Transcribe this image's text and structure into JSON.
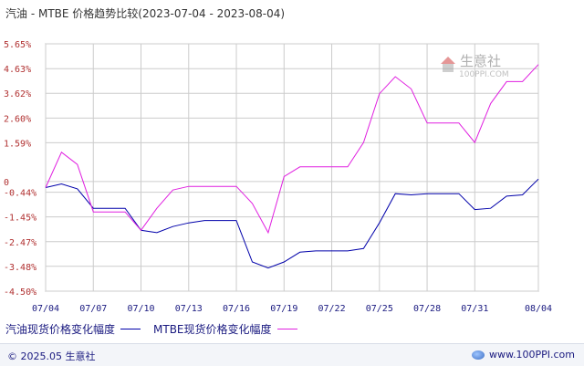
{
  "title": "汽油 - MTBE 价格趋势比较(2023-07-04 - 2023-08-04)",
  "watermark": {
    "logo_text": "生意社",
    "url_text": "100PPI.COM"
  },
  "footer": {
    "copyright": "© 2025.05 生意社",
    "url": "www.100PPI.com"
  },
  "colors": {
    "series1": "#0000aa",
    "series2": "#e020e0",
    "grid": "#cccccc",
    "frame": "#999999"
  },
  "chart_data": {
    "type": "line",
    "ylabel": "",
    "xlabel": "",
    "ylim": [
      -4.5,
      5.65
    ],
    "y_ticks": [
      {
        "value": 5.65,
        "label": "5.65%"
      },
      {
        "value": 4.63,
        "label": "4.63%"
      },
      {
        "value": 3.62,
        "label": "3.62%"
      },
      {
        "value": 2.6,
        "label": "2.60%"
      },
      {
        "value": 1.59,
        "label": "1.59%"
      },
      {
        "value": 0,
        "label": "0"
      },
      {
        "value": -0.44,
        "label": "-0.44%"
      },
      {
        "value": -1.45,
        "label": "-1.45%"
      },
      {
        "value": -2.47,
        "label": "-2.47%"
      },
      {
        "value": -3.48,
        "label": "-3.48%"
      },
      {
        "value": -4.5,
        "label": "-4.50%"
      }
    ],
    "x_dates": [
      "07/04",
      "07/05",
      "07/06",
      "07/07",
      "07/08",
      "07/09",
      "07/10",
      "07/11",
      "07/12",
      "07/13",
      "07/14",
      "07/15",
      "07/16",
      "07/17",
      "07/18",
      "07/19",
      "07/20",
      "07/21",
      "07/22",
      "07/23",
      "07/24",
      "07/25",
      "07/26",
      "07/27",
      "07/28",
      "07/29",
      "07/30",
      "07/31",
      "08/01",
      "08/02",
      "08/03",
      "08/04"
    ],
    "x_tick_labels": [
      "07/04",
      "07/07",
      "07/10",
      "07/13",
      "07/16",
      "07/19",
      "07/22",
      "07/25",
      "07/28",
      "07/31",
      "08/04"
    ],
    "x_tick_indices": [
      0,
      3,
      6,
      9,
      12,
      15,
      18,
      21,
      24,
      27,
      31
    ],
    "series": [
      {
        "name": "汽油现货价格变化幅度",
        "values": [
          -0.25,
          -0.1,
          -0.3,
          -1.1,
          -1.1,
          -1.1,
          -2.0,
          -2.1,
          -1.85,
          -1.7,
          -1.6,
          -1.6,
          -1.6,
          -3.3,
          -3.55,
          -3.3,
          -2.9,
          -2.85,
          -2.85,
          -2.85,
          -2.75,
          -1.7,
          -0.5,
          -0.55,
          -0.5,
          -0.5,
          -0.5,
          -1.15,
          -1.1,
          -0.6,
          -0.55,
          0.1
        ]
      },
      {
        "name": "MTBE现货价格变化幅度",
        "values": [
          -0.25,
          1.2,
          0.7,
          -1.25,
          -1.25,
          -1.25,
          -2.0,
          -1.1,
          -0.35,
          -0.2,
          -0.2,
          -0.2,
          -0.2,
          -0.9,
          -2.1,
          0.2,
          0.6,
          0.6,
          0.6,
          0.6,
          1.6,
          3.6,
          4.3,
          3.8,
          2.4,
          2.4,
          2.4,
          1.6,
          3.2,
          4.1,
          4.1,
          4.8
        ]
      }
    ]
  }
}
